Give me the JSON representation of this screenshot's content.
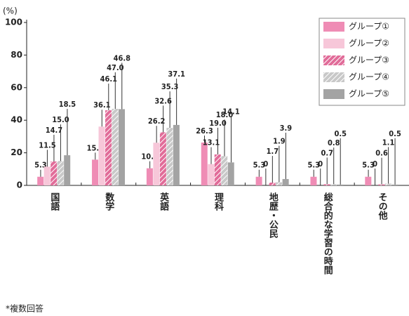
{
  "chart_data": {
    "type": "bar",
    "y_unit": "(%)",
    "note": "*複数回答",
    "categories": [
      "国語",
      "数学",
      "英語",
      "理科",
      "地歴・公民",
      "総合的な学習の時間",
      "その他"
    ],
    "series": [
      {
        "name": "グループ①",
        "color": "#ef8cb5",
        "pattern": "solid",
        "values": [
          5.3,
          15.8,
          10.5,
          26.3,
          5.3,
          5.3,
          5.3
        ],
        "value_labels": [
          "5.3",
          "15.8",
          "10.5",
          "26.3",
          "5.3",
          "5.3",
          "5.3"
        ]
      },
      {
        "name": "グループ②",
        "color": "#f7c7d9",
        "pattern": "solid",
        "values": [
          11.5,
          36.1,
          26.2,
          13.1,
          0,
          0,
          0
        ],
        "value_labels": [
          "11.5",
          "36.1",
          "26.2",
          "13.1",
          "0",
          "0",
          "0"
        ]
      },
      {
        "name": "グループ③",
        "color": "#e16c99",
        "pattern": "hatch",
        "values": [
          14.7,
          46.1,
          32.6,
          19.0,
          1.7,
          0.7,
          0.6
        ],
        "value_labels": [
          "14.7",
          "46.1",
          "32.6",
          "19.0",
          "1.7",
          "0.7",
          "0.6"
        ]
      },
      {
        "name": "グループ④",
        "color": "#c8c8c8",
        "pattern": "hatch",
        "values": [
          15.0,
          47.0,
          35.3,
          18.0,
          1.9,
          0.8,
          1.1
        ],
        "value_labels": [
          "15.0",
          "47.0",
          "35.3",
          "18.0",
          "1.9",
          "0.8",
          "1.1"
        ]
      },
      {
        "name": "グループ⑤",
        "color": "#a3a3a3",
        "pattern": "solid",
        "values": [
          18.5,
          46.8,
          37.1,
          14.1,
          3.9,
          0.5,
          0.5
        ],
        "value_labels": [
          "18.5",
          "46.8",
          "37.1",
          "14.1",
          "3.9",
          "0.5",
          "0.5"
        ]
      }
    ],
    "ylim": [
      0,
      100
    ],
    "yticks": [
      0,
      20,
      40,
      60,
      80,
      100
    ],
    "legend": "top-right"
  }
}
